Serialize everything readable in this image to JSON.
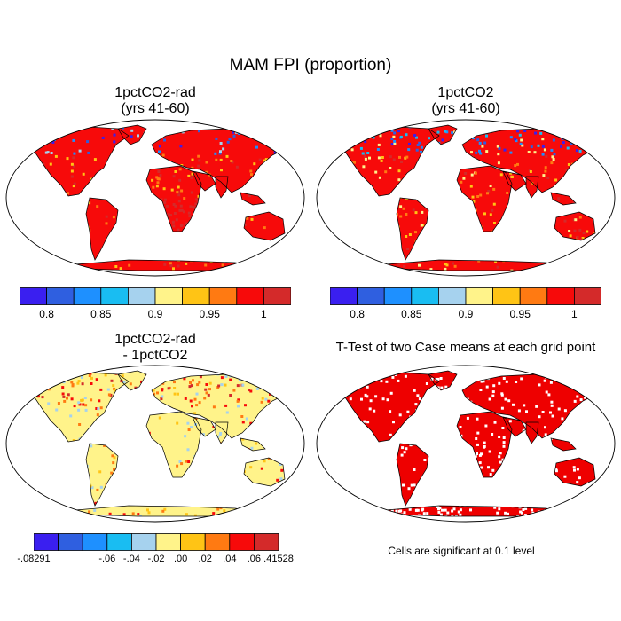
{
  "title": "MAM FPI (proportion)",
  "panels": [
    {
      "id": "p1",
      "title_line1": "1pctCO2-rad",
      "title_line2": "(yrs 41-60)"
    },
    {
      "id": "p2",
      "title_line1": "1pctCO2",
      "title_line2": "(yrs 41-60)"
    },
    {
      "id": "p3",
      "title_line1": "1pctCO2-rad",
      "title_line2": "- 1pctCO2"
    },
    {
      "id": "p4",
      "title_line1": "T-Test of two Case means at each grid point",
      "title_line2": ""
    }
  ],
  "colorbar_abs": {
    "colors": [
      "#3a1ff0",
      "#2f5fe0",
      "#1e90ff",
      "#19bdf2",
      "#a6d2ee",
      "#fff38a",
      "#ffc415",
      "#ff7a12",
      "#f70a0a",
      "#d42a2a"
    ],
    "labels": [
      "0.8",
      "0.85",
      "0.9",
      "0.95",
      "1"
    ]
  },
  "colorbar_diff": {
    "colors": [
      "#3a1ff0",
      "#2f5fe0",
      "#1e90ff",
      "#19bdf2",
      "#a6d2ee",
      "#fff38a",
      "#ffc415",
      "#ff7a12",
      "#f70a0a",
      "#d42a2a"
    ],
    "labels": [
      "-.08291",
      "-.06",
      "-.04",
      "-.02",
      ".00",
      ".02",
      ".04",
      ".06",
      ".41528"
    ]
  },
  "significance_note": "Cells are significant at 0.1 level",
  "colors": {
    "land_high": "#f70a0a",
    "land_darkred": "#d42a2a",
    "land_blue": "#3a1ff0",
    "diff_land": "#fff38a",
    "sig_fill": "#ee0000"
  }
}
